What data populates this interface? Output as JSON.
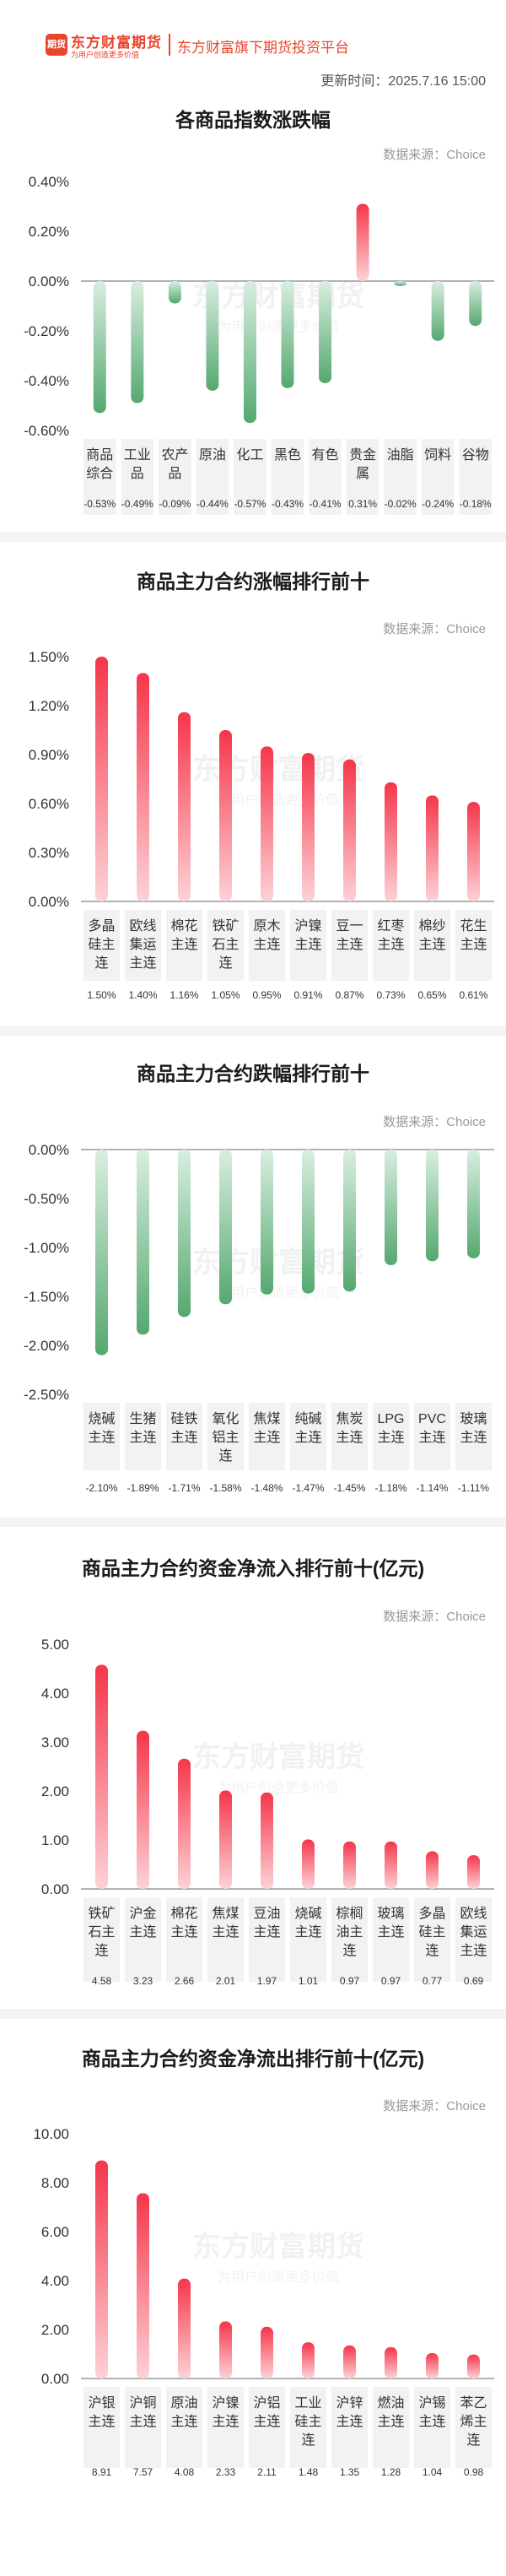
{
  "header": {
    "logo_text": "东方财富期货",
    "logo_badge": "期货",
    "logo_slogan": "为用户创造更多价值",
    "platform": "东方财富旗下期货投资平台",
    "update_time": "更新时间：2025.7.16 15:00"
  },
  "source_label": "数据来源：Choice",
  "watermark": {
    "main": "东方财富期货",
    "sub": "为用户创造更多价值"
  },
  "colors": {
    "up_top": "#f5364a",
    "up_bottom": "#fdd2d7",
    "down_top": "#55a870",
    "down_bottom": "#d9eee0",
    "label_bg": "#f2f2f2"
  },
  "chart_data": [
    {
      "type": "bar",
      "title": "各商品指数涨跌幅",
      "categories": [
        "商品综合",
        "工业品",
        "农产品",
        "原油",
        "化工",
        "黑色",
        "有色",
        "贵金属",
        "油脂",
        "饲料",
        "谷物"
      ],
      "values": [
        -0.53,
        -0.49,
        -0.09,
        -0.44,
        -0.57,
        -0.43,
        -0.41,
        0.31,
        -0.02,
        -0.24,
        -0.18
      ],
      "value_labels": [
        "-0.53%",
        "-0.49%",
        "-0.09%",
        "-0.44%",
        "-0.57%",
        "-0.43%",
        "-0.41%",
        "0.31%",
        "-0.02%",
        "-0.24%",
        "-0.18%"
      ],
      "yticks": [
        "0.40%",
        "0.20%",
        "0.00%",
        "-0.20%",
        "-0.40%",
        "-0.60%"
      ],
      "ylim": [
        -0.6,
        0.4
      ],
      "unit": "%"
    },
    {
      "type": "bar",
      "title": "商品主力合约涨幅排行前十",
      "categories": [
        "多晶硅主连",
        "欧线集运主连",
        "棉花主连",
        "铁矿石主连",
        "原木主连",
        "沪镍主连",
        "豆一主连",
        "红枣主连",
        "棉纱主连",
        "花生主连"
      ],
      "values": [
        1.5,
        1.4,
        1.16,
        1.05,
        0.95,
        0.91,
        0.87,
        0.73,
        0.65,
        0.61
      ],
      "value_labels": [
        "1.50%",
        "1.40%",
        "1.16%",
        "1.05%",
        "0.95%",
        "0.91%",
        "0.87%",
        "0.73%",
        "0.65%",
        "0.61%"
      ],
      "yticks": [
        "1.50%",
        "1.20%",
        "0.90%",
        "0.60%",
        "0.30%",
        "0.00%"
      ],
      "ylim": [
        0,
        1.5
      ],
      "unit": "%"
    },
    {
      "type": "bar",
      "title": "商品主力合约跌幅排行前十",
      "categories": [
        "烧碱主连",
        "生猪主连",
        "硅铁主连",
        "氧化铝主连",
        "焦煤主连",
        "纯碱主连",
        "焦炭主连",
        "LPG主连",
        "PVC主连",
        "玻璃主连"
      ],
      "values": [
        -2.1,
        -1.89,
        -1.71,
        -1.58,
        -1.48,
        -1.47,
        -1.45,
        -1.18,
        -1.14,
        -1.11
      ],
      "value_labels": [
        "-2.10%",
        "-1.89%",
        "-1.71%",
        "-1.58%",
        "-1.48%",
        "-1.47%",
        "-1.45%",
        "-1.18%",
        "-1.14%",
        "-1.11%"
      ],
      "yticks": [
        "0.00%",
        "-0.50%",
        "-1.00%",
        "-1.50%",
        "-2.00%",
        "-2.50%"
      ],
      "ylim": [
        -2.5,
        0
      ],
      "unit": "%"
    },
    {
      "type": "bar",
      "title": "商品主力合约资金净流入排行前十(亿元)",
      "categories": [
        "铁矿石主连",
        "沪金主连",
        "棉花主连",
        "焦煤主连",
        "豆油主连",
        "烧碱主连",
        "棕榈油主连",
        "玻璃主连",
        "多晶硅主连",
        "欧线集运主连"
      ],
      "values": [
        4.58,
        3.23,
        2.66,
        2.01,
        1.97,
        1.01,
        0.97,
        0.97,
        0.77,
        0.69
      ],
      "value_labels": [
        "4.58",
        "3.23",
        "2.66",
        "2.01",
        "1.97",
        "1.01",
        "0.97",
        "0.97",
        "0.77",
        "0.69"
      ],
      "yticks": [
        "5.00",
        "4.00",
        "3.00",
        "2.00",
        "1.00",
        "0.00"
      ],
      "ylim": [
        0,
        5
      ],
      "unit": "亿元"
    },
    {
      "type": "bar",
      "title": "商品主力合约资金净流出排行前十(亿元)",
      "categories": [
        "沪银主连",
        "沪铜主连",
        "原油主连",
        "沪镍主连",
        "沪铝主连",
        "工业硅主连",
        "沪锌主连",
        "燃油主连",
        "沪锡主连",
        "苯乙烯主连"
      ],
      "values": [
        8.91,
        7.57,
        4.08,
        2.33,
        2.11,
        1.48,
        1.35,
        1.28,
        1.04,
        0.98
      ],
      "value_labels": [
        "8.91",
        "7.57",
        "4.08",
        "2.33",
        "2.11",
        "1.48",
        "1.35",
        "1.28",
        "1.04",
        "0.98"
      ],
      "yticks": [
        "10.00",
        "8.00",
        "6.00",
        "4.00",
        "2.00",
        "0.00"
      ],
      "ylim": [
        0,
        10
      ],
      "unit": "亿元"
    }
  ]
}
